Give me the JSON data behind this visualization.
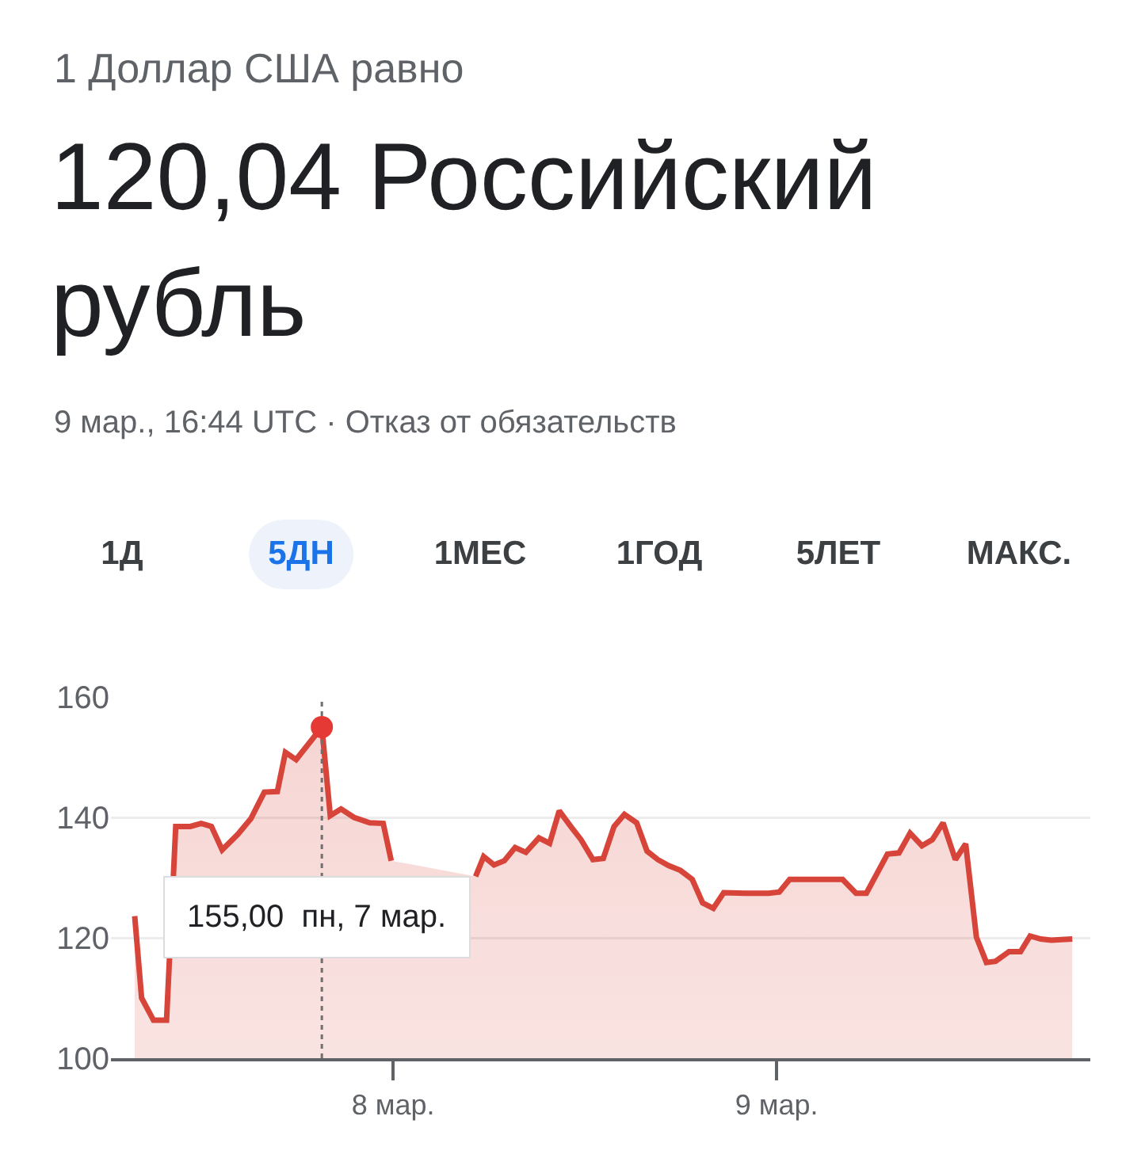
{
  "chart_data": {
    "type": "area",
    "subtitle": "1 Доллар США равно",
    "title": "120,04 Российский рубль",
    "annotations": [
      "9 мар., 16:44 UTC · Отказ от обязательств",
      "1Д",
      "5ДН",
      "1МЕС",
      "1ГОД",
      "5ЛЕТ",
      "МАКС.",
      "155,00  пн, 7 мар."
    ],
    "series": [
      {
        "color": "#d7443a",
        "x": [
          7.326,
          7.344,
          7.375,
          7.409,
          7.433,
          7.471,
          7.499,
          7.526,
          7.554,
          7.595,
          7.629,
          7.664,
          7.698,
          7.719,
          7.747,
          7.814,
          7.836,
          7.864,
          7.898,
          7.939,
          7.974,
          7.995,
          8.1,
          8.215,
          8.236,
          8.263,
          8.29,
          8.318,
          8.346,
          8.38,
          8.408,
          8.433,
          8.463,
          8.49,
          8.521,
          8.548,
          8.576,
          8.603,
          8.635,
          8.662,
          8.69,
          8.718,
          8.749,
          8.78,
          8.807,
          8.835,
          8.862,
          8.917,
          8.979,
          9.007,
          9.034,
          9.172,
          9.207,
          9.234,
          9.289,
          9.319,
          9.348,
          9.379,
          9.406,
          9.434,
          9.466,
          9.493,
          9.521,
          9.547,
          9.571,
          9.606,
          9.636,
          9.661,
          9.689,
          9.716,
          9.771
        ],
        "values": [
          123.6,
          110,
          106.3,
          106.3,
          138.5,
          138.5,
          139,
          138.5,
          134.6,
          137.2,
          139.8,
          144.2,
          144.3,
          150.8,
          149.6,
          155,
          140.3,
          141.4,
          140,
          139.1,
          139,
          132.8,
          null,
          130.2,
          133.5,
          132.1,
          132.8,
          135,
          134.2,
          136.6,
          135.7,
          141.1,
          138.5,
          136.3,
          133,
          133.2,
          138.5,
          140.5,
          139.1,
          134.4,
          133,
          132,
          131.2,
          129.7,
          125.8,
          124.9,
          127.5,
          127.4,
          127.4,
          127.6,
          129.7,
          129.7,
          127.4,
          127.4,
          133.9,
          134.1,
          137.4,
          135.3,
          136.3,
          139.1,
          133,
          135.6,
          120.1,
          115.9,
          116.1,
          117.7,
          117.7,
          120.3,
          119.8,
          119.6,
          119.8
        ]
      }
    ],
    "xlim": [
      7.264,
      9.818
    ],
    "xticks": [
      {
        "value": 8,
        "label": "8 мар."
      },
      {
        "value": 9,
        "label": "9 мар."
      }
    ],
    "ylim": [
      100,
      160
    ],
    "yticks": [
      100,
      120,
      140,
      160
    ],
    "grid": "y",
    "marker": "none",
    "line_style": "solid",
    "ref_lines": [
      {
        "axis": "x",
        "value": 7.814,
        "label": null,
        "color": "#707070",
        "line_style": "dotted"
      }
    ]
  }
}
